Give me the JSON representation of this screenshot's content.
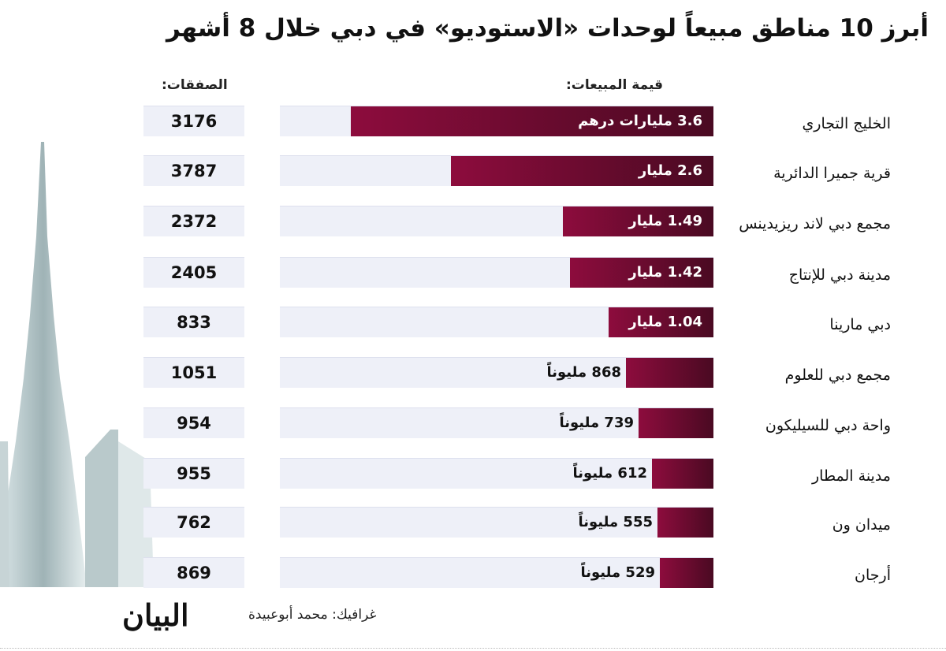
{
  "title": "أبرز 10 مناطق مبيعاً لوحدات «الاستوديو» في دبي خلال 8 أشهر",
  "headers": {
    "sales": "قيمة المبيعات:",
    "deals": "الصفقات:"
  },
  "credit": "غرافيك: محمد أبوعبيدة",
  "logo": "البيان",
  "colors": {
    "bar_light": "#8d0c3d",
    "bar_dark": "#4a0a22",
    "track": "#eef0f8"
  },
  "chart_data": {
    "type": "bar",
    "title": "أبرز 10 مناطق مبيعاً لوحدات «الاستوديو» في دبي خلال 8 أشهر",
    "unit": "billion AED",
    "xlim": [
      0,
      4.3
    ],
    "categories": [
      "الخليج التجاري",
      "قرية جميرا الدائرية",
      "مجمع دبي لاند ريزيدينس",
      "مدينة دبي للإنتاج",
      "دبي مارينا",
      "مجمع دبي للعلوم",
      "واحة دبي للسيليكون",
      "مدينة المطار",
      "ميدان ون",
      "أرجان"
    ],
    "values": [
      3.6,
      2.6,
      1.49,
      1.42,
      1.04,
      0.868,
      0.739,
      0.612,
      0.555,
      0.529
    ],
    "value_labels": [
      "3.6 مليارات درهم",
      "2.6 مليار",
      "1.49 مليار",
      "1.42 مليار",
      "1.04 مليار",
      "868 مليوناً",
      "739 مليوناً",
      "612 مليوناً",
      "555 مليوناً",
      "529 مليوناً"
    ],
    "deals": [
      "3176",
      "3787",
      "2372",
      "2405",
      "833",
      "1051",
      "954",
      "955",
      "762",
      "869"
    ]
  }
}
